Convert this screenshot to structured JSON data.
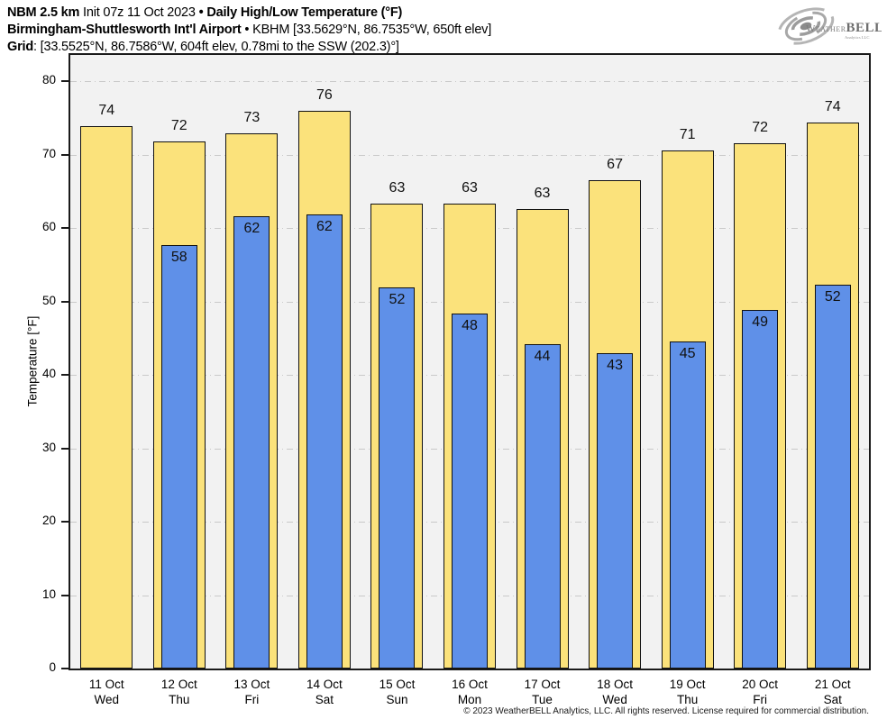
{
  "header": {
    "line1": {
      "model": "NBM 2.5 km",
      "init": "Init 07z 11 Oct 2023",
      "sep": "•",
      "product": "Daily High/Low Temperature (°F)"
    },
    "line2": {
      "station": "Birmingham-Shuttlesworth Int'l Airport",
      "sep": "•",
      "station_info": "KBHM [33.5629°N, 86.7535°W, 650ft elev]"
    },
    "line3": {
      "label": "Grid",
      "info": ": [33.5525°N, 86.7586°W, 604ft elev, 0.78mi to the SSW (202.3)°]"
    }
  },
  "logo": {
    "brand_weather": "Weather",
    "brand_bell": "BELL",
    "subtitle": "Analytics LLC"
  },
  "footer": {
    "copyright": "© 2023 WeatherBELL Analytics, LLC. All rights reserved. License required for commercial distribution."
  },
  "chart_data": {
    "type": "bar",
    "title": "NBM 2.5 km Init 07z 11 Oct 2023 — Daily High/Low Temperature (°F)",
    "ylabel": "Temperature [°F]",
    "ylim": [
      0,
      80
    ],
    "yticks": [
      0,
      10,
      20,
      30,
      40,
      50,
      60,
      70,
      80
    ],
    "grid": true,
    "legend_position": "none",
    "categories": [
      {
        "date": "11 Oct",
        "day": "Wed"
      },
      {
        "date": "12 Oct",
        "day": "Thu"
      },
      {
        "date": "13 Oct",
        "day": "Fri"
      },
      {
        "date": "14 Oct",
        "day": "Sat"
      },
      {
        "date": "15 Oct",
        "day": "Sun"
      },
      {
        "date": "16 Oct",
        "day": "Mon"
      },
      {
        "date": "17 Oct",
        "day": "Tue"
      },
      {
        "date": "18 Oct",
        "day": "Wed"
      },
      {
        "date": "19 Oct",
        "day": "Thu"
      },
      {
        "date": "20 Oct",
        "day": "Fri"
      },
      {
        "date": "21 Oct",
        "day": "Sat"
      }
    ],
    "series": [
      {
        "name": "High",
        "color": "#fbe27b",
        "labels": [
          74,
          72,
          73,
          76,
          63,
          63,
          63,
          67,
          71,
          72,
          74
        ],
        "values": [
          73.9,
          71.8,
          72.9,
          75.9,
          63.3,
          63.3,
          62.6,
          66.5,
          70.5,
          71.5,
          74.3
        ]
      },
      {
        "name": "Low",
        "color": "#5f90e8",
        "labels": [
          null,
          58,
          62,
          62,
          52,
          48,
          44,
          43,
          45,
          49,
          52
        ],
        "values": [
          null,
          57.7,
          61.6,
          61.8,
          51.9,
          48.3,
          44.2,
          42.9,
          44.5,
          48.8,
          52.3
        ]
      }
    ]
  },
  "colors": {
    "high_fill": "#fbe27b",
    "low_fill": "#5f90e8",
    "bar_border": "#111111",
    "plot_bg": "#f2f2f2",
    "gridline": "#c9c9c9",
    "spine": "#1a1a1a"
  }
}
